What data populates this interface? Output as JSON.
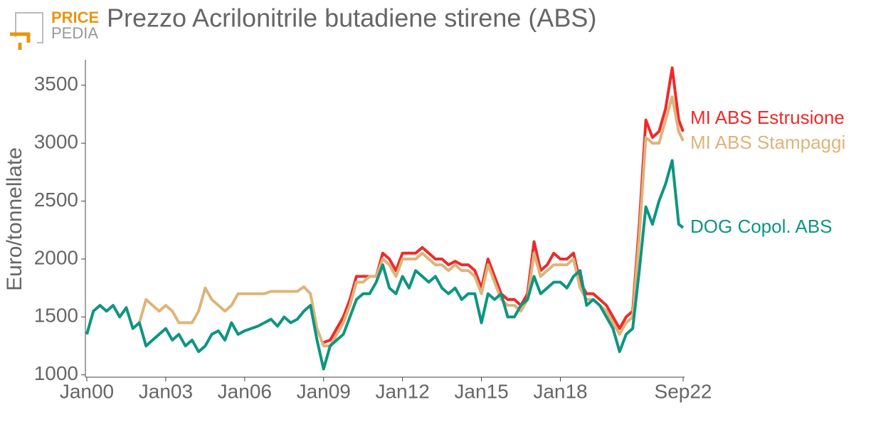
{
  "logo": {
    "top": "PRICE",
    "bottom": "PEDIA"
  },
  "chart_data": {
    "type": "line",
    "title": "Prezzo Acrilonitrile butadiene stirene (ABS)",
    "y_label": "Euro/tonnellate",
    "x": [
      "Jan00",
      "Apr00",
      "Jul00",
      "Oct00",
      "Jan01",
      "Apr01",
      "Jul01",
      "Oct01",
      "Jan02",
      "Apr02",
      "Jul02",
      "Oct02",
      "Jan03",
      "Apr03",
      "Jul03",
      "Oct03",
      "Jan04",
      "Apr04",
      "Jul04",
      "Oct04",
      "Jan05",
      "Apr05",
      "Jul05",
      "Oct05",
      "Jan06",
      "Apr06",
      "Jul06",
      "Oct06",
      "Jan07",
      "Apr07",
      "Jul07",
      "Oct07",
      "Jan08",
      "Apr08",
      "Jul08",
      "Oct08",
      "Jan09",
      "Apr09",
      "Jul09",
      "Oct09",
      "Jan10",
      "Apr10",
      "Jul10",
      "Oct10",
      "Jan11",
      "Apr11",
      "Jul11",
      "Oct11",
      "Jan12",
      "Apr12",
      "Jul12",
      "Oct12",
      "Jan13",
      "Apr13",
      "Jul13",
      "Oct13",
      "Jan14",
      "Apr14",
      "Jul14",
      "Oct14",
      "Jan15",
      "Apr15",
      "Jul15",
      "Oct15",
      "Jan16",
      "Apr16",
      "Jul16",
      "Oct16",
      "Jan17",
      "Apr17",
      "Jul17",
      "Oct17",
      "Jan18",
      "Apr18",
      "Jul18",
      "Oct18",
      "Jan19",
      "Apr19",
      "Jul19",
      "Oct19",
      "Jan20",
      "Apr20",
      "Jul20",
      "Oct20",
      "Jan21",
      "Apr21",
      "Jul21",
      "Oct21",
      "Jan22",
      "Apr22",
      "Jul22",
      "Sep22"
    ],
    "xticks": [
      "Jan00",
      "Jan03",
      "Jan06",
      "Jan09",
      "Jan12",
      "Jan15",
      "Jan18",
      "Sep22"
    ],
    "ylim": [
      980,
      3720
    ],
    "yticks": [
      1000,
      1500,
      2000,
      2500,
      3000,
      3500
    ],
    "grid": false,
    "series": [
      {
        "name": "MI ABS Estrusione",
        "color": "#ee2a2a",
        "values": [
          null,
          null,
          null,
          null,
          null,
          null,
          null,
          null,
          null,
          null,
          null,
          null,
          null,
          null,
          null,
          null,
          null,
          null,
          null,
          null,
          null,
          null,
          null,
          null,
          null,
          null,
          null,
          null,
          null,
          null,
          null,
          null,
          null,
          null,
          null,
          null,
          1280,
          1300,
          1400,
          1500,
          1650,
          1850,
          1850,
          1850,
          1850,
          2050,
          2000,
          1900,
          2050,
          2050,
          2050,
          2100,
          2050,
          2000,
          2000,
          1950,
          1980,
          1950,
          1950,
          1900,
          1750,
          2000,
          1850,
          1700,
          1650,
          1650,
          1600,
          1700,
          2150,
          1900,
          1950,
          2050,
          2000,
          2000,
          2050,
          1800,
          1700,
          1700,
          1650,
          1600,
          1500,
          1400,
          1500,
          1550,
          2300,
          3200,
          3050,
          3100,
          3300,
          3650,
          3200,
          3100
        ]
      },
      {
        "name": "MI ABS Stampaggi",
        "color": "#ddb47a",
        "values": [
          null,
          null,
          null,
          null,
          null,
          null,
          null,
          null,
          1450,
          1650,
          1600,
          1550,
          1600,
          1550,
          1450,
          1450,
          1450,
          1550,
          1750,
          1650,
          1600,
          1550,
          1600,
          1700,
          1700,
          1700,
          1700,
          1700,
          1720,
          1720,
          1720,
          1720,
          1720,
          1760,
          1700,
          1400,
          1250,
          1250,
          1350,
          1450,
          1600,
          1800,
          1800,
          1850,
          1850,
          2000,
          1950,
          1850,
          2000,
          2000,
          2000,
          2050,
          2000,
          1950,
          1950,
          1900,
          1950,
          1900,
          1900,
          1850,
          1700,
          1950,
          1800,
          1650,
          1600,
          1600,
          1550,
          1650,
          2050,
          1850,
          1900,
          1950,
          1950,
          1950,
          2000,
          1750,
          1650,
          1650,
          1600,
          1550,
          1450,
          1350,
          1450,
          1500,
          2200,
          3050,
          3000,
          3000,
          3200,
          3400,
          3100,
          3020
        ]
      },
      {
        "name": "DOG Copol. ABS",
        "color": "#0e9580",
        "values": [
          1350,
          1550,
          1600,
          1550,
          1600,
          1500,
          1580,
          1400,
          1450,
          1250,
          1300,
          1350,
          1400,
          1300,
          1350,
          1250,
          1300,
          1200,
          1250,
          1350,
          1380,
          1300,
          1450,
          1350,
          1380,
          1400,
          1420,
          1450,
          1480,
          1420,
          1500,
          1450,
          1480,
          1550,
          1600,
          1300,
          1050,
          1250,
          1300,
          1350,
          1500,
          1650,
          1700,
          1700,
          1800,
          1950,
          1750,
          1700,
          1850,
          1750,
          1900,
          1850,
          1800,
          1850,
          1750,
          1700,
          1750,
          1650,
          1700,
          1700,
          1450,
          1700,
          1650,
          1700,
          1500,
          1500,
          1600,
          1650,
          1850,
          1700,
          1750,
          1800,
          1800,
          1750,
          1850,
          1900,
          1600,
          1650,
          1600,
          1500,
          1400,
          1200,
          1350,
          1400,
          1900,
          2450,
          2300,
          2500,
          2650,
          2850,
          2300,
          2270
        ]
      }
    ]
  }
}
